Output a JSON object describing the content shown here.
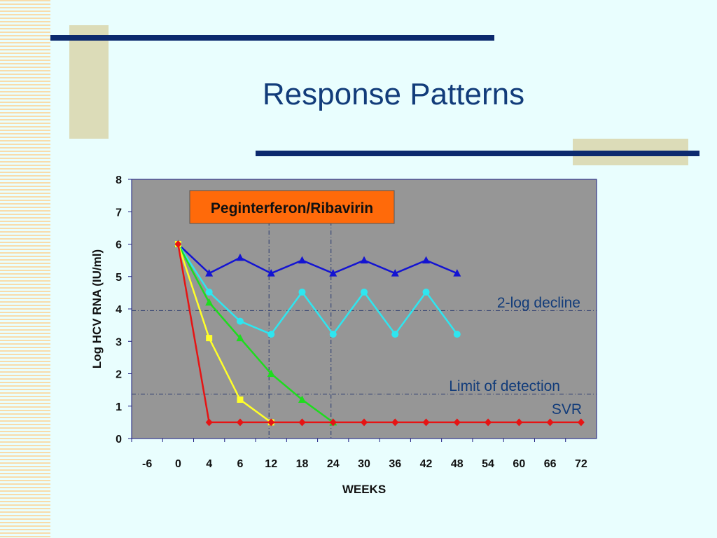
{
  "slide": {
    "title": "Response Patterns"
  },
  "colors": {
    "slide_background": "#e9fefe",
    "plot_background": "#969696",
    "legend_box": "#ff6a0a",
    "navy": "#0c2a6e",
    "title_text": "#123c7a"
  },
  "chart_data": {
    "type": "line",
    "ylabel": "Log HCV RNA (IU/ml)",
    "xlabel": "WEEKS",
    "ylim": [
      0,
      8
    ],
    "y_ticks": [
      "0",
      "1",
      "2",
      "3",
      "4",
      "5",
      "6",
      "7",
      "8"
    ],
    "categories": [
      "-6",
      "0",
      "4",
      "6",
      "12",
      "18",
      "24",
      "30",
      "36",
      "42",
      "48",
      "54",
      "60",
      "66",
      "72"
    ],
    "grid": false,
    "legend_box": "Peginterferon/Ribavirin",
    "reference_lines": [
      {
        "orientation": "horizontal",
        "y": 3.95,
        "label": "2-log decline"
      },
      {
        "orientation": "horizontal",
        "y": 1.37,
        "label": "Limit of detection"
      },
      {
        "orientation": "vertical",
        "x": "12"
      },
      {
        "orientation": "vertical",
        "x": "24"
      }
    ],
    "annotations": [
      {
        "text": "SVR"
      }
    ],
    "series": [
      {
        "color": "#1414d2",
        "marker": "triangle",
        "points": [
          [
            "0",
            6.0
          ],
          [
            "4",
            5.1
          ],
          [
            "6",
            5.58
          ],
          [
            "12",
            5.1
          ],
          [
            "18",
            5.5
          ],
          [
            "24",
            5.1
          ],
          [
            "30",
            5.5
          ],
          [
            "36",
            5.1
          ],
          [
            "42",
            5.5
          ],
          [
            "48",
            5.1
          ]
        ]
      },
      {
        "color": "#2ee6f0",
        "marker": "circle",
        "points": [
          [
            "0",
            6.0
          ],
          [
            "4",
            4.52
          ],
          [
            "6",
            3.62
          ],
          [
            "12",
            3.22
          ],
          [
            "18",
            4.52
          ],
          [
            "24",
            3.22
          ],
          [
            "30",
            4.52
          ],
          [
            "36",
            3.22
          ],
          [
            "42",
            4.52
          ],
          [
            "48",
            3.22
          ]
        ]
      },
      {
        "color": "#1edc1e",
        "marker": "triangle",
        "points": [
          [
            "0",
            6.0
          ],
          [
            "4",
            4.2
          ],
          [
            "6",
            3.1
          ],
          [
            "12",
            2.0
          ],
          [
            "18",
            1.2
          ],
          [
            "24",
            0.5
          ]
        ]
      },
      {
        "color": "#ffff28",
        "marker": "square",
        "points": [
          [
            "0",
            6.0
          ],
          [
            "4",
            3.1
          ],
          [
            "6",
            1.2
          ],
          [
            "12",
            0.5
          ]
        ]
      },
      {
        "color": "#e61414",
        "marker": "diamond",
        "points": [
          [
            "0",
            6.0
          ],
          [
            "4",
            0.5
          ],
          [
            "6",
            0.5
          ],
          [
            "12",
            0.5
          ],
          [
            "18",
            0.5
          ],
          [
            "24",
            0.5
          ],
          [
            "30",
            0.5
          ],
          [
            "36",
            0.5
          ],
          [
            "42",
            0.5
          ],
          [
            "48",
            0.5
          ],
          [
            "54",
            0.5
          ],
          [
            "60",
            0.5
          ],
          [
            "66",
            0.5
          ],
          [
            "72",
            0.5
          ]
        ]
      }
    ]
  }
}
